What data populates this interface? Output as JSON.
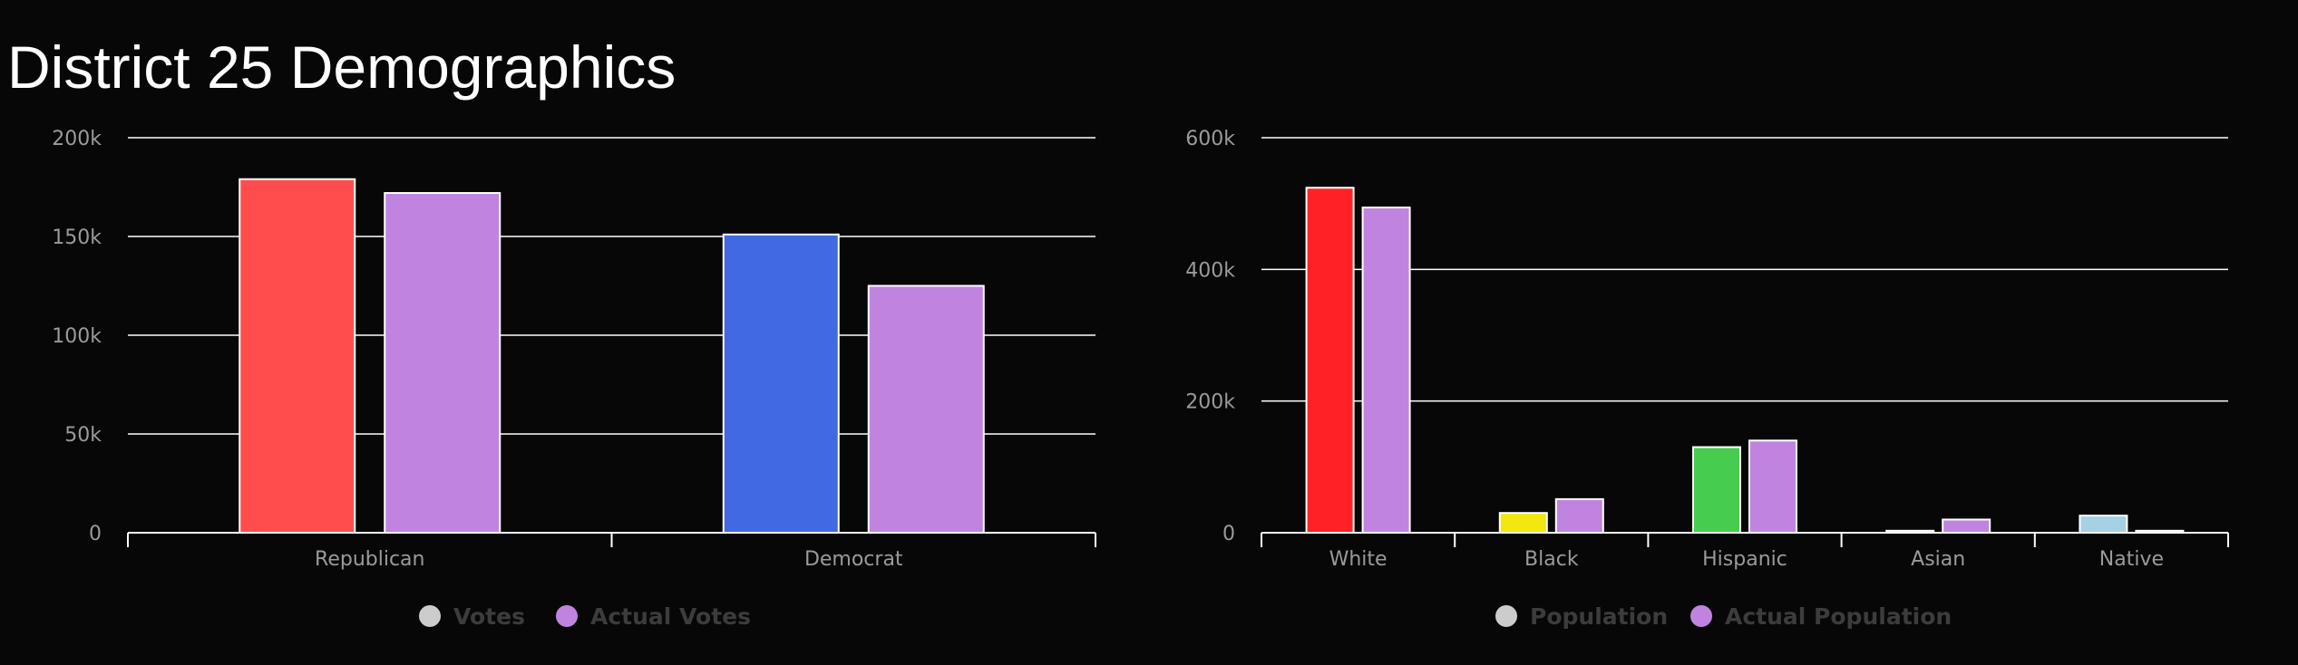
{
  "page": {
    "title": "District 25 Demographics"
  },
  "chart_data": [
    {
      "type": "bar",
      "categories": [
        "Republican",
        "Democrat"
      ],
      "ylim": [
        0,
        200000
      ],
      "yticks": [
        0,
        50000,
        100000,
        150000,
        200000
      ],
      "ytick_labels": [
        "0",
        "50k",
        "100k",
        "150k",
        "200k"
      ],
      "grid": true,
      "legend_position": "bottom",
      "series": [
        {
          "name": "Votes",
          "legend_color": "#cccccc",
          "values": [
            179000,
            151000
          ],
          "point_colors": [
            "#ff4d4d",
            "#4169e1"
          ]
        },
        {
          "name": "Actual Votes",
          "legend_color": "#c084e0",
          "values": [
            172000,
            125000
          ],
          "point_colors": [
            "#c084e0",
            "#c084e0"
          ]
        }
      ]
    },
    {
      "type": "bar",
      "categories": [
        "White",
        "Black",
        "Hispanic",
        "Asian",
        "Native"
      ],
      "ylim": [
        0,
        600000
      ],
      "yticks": [
        0,
        200000,
        400000,
        600000
      ],
      "ytick_labels": [
        "0",
        "200k",
        "400k",
        "600k"
      ],
      "grid": true,
      "legend_position": "bottom",
      "series": [
        {
          "name": "Population",
          "legend_color": "#cccccc",
          "values": [
            524000,
            30000,
            130000,
            3000,
            26000
          ],
          "point_colors": [
            "#ff2126",
            "#f2e70f",
            "#46cc4e",
            "#cccccc",
            "#a6d0e4"
          ]
        },
        {
          "name": "Actual Population",
          "legend_color": "#c084e0",
          "values": [
            494000,
            51000,
            140000,
            20000,
            3000
          ],
          "point_colors": [
            "#c084e0",
            "#c084e0",
            "#c084e0",
            "#c084e0",
            "#cccccc"
          ]
        }
      ]
    }
  ]
}
